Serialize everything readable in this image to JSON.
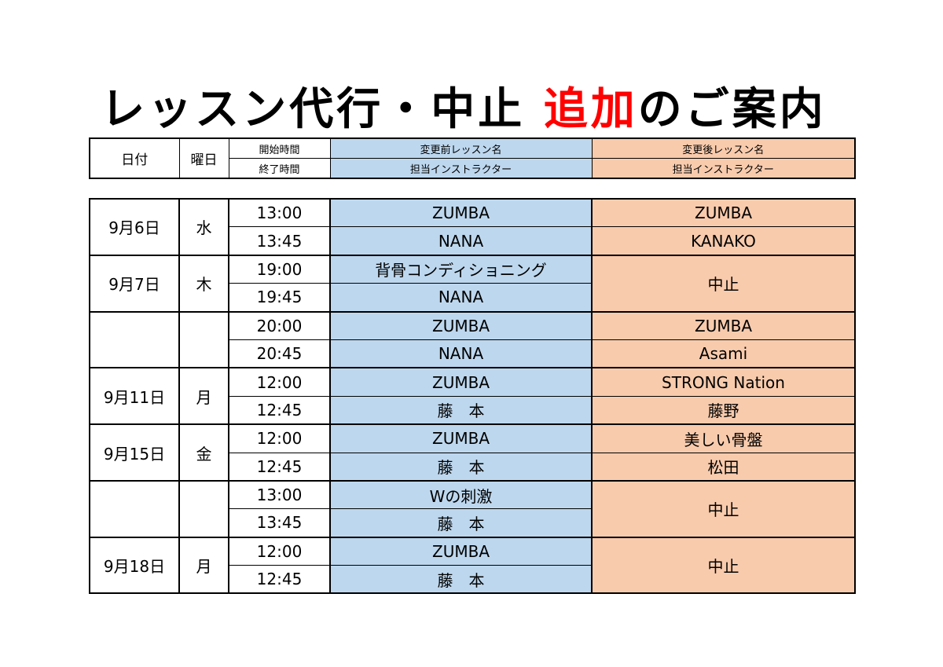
{
  "title": {
    "part1": "レッスン代行・中止 ",
    "highlight": "追加",
    "part2": "のご案内",
    "highlight_color": "#ff0000"
  },
  "header": {
    "date": "日付",
    "day": "曜日",
    "start_time": "開始時間",
    "end_time": "終了時間",
    "before_lesson": "変更前レッスン名",
    "before_instructor": "担当インストラクター",
    "after_lesson": "変更後レッスン名",
    "after_instructor": "担当インストラクター"
  },
  "colors": {
    "before_bg": "#bdd7ee",
    "after_bg": "#f8cbad"
  },
  "groups": [
    {
      "date": "9月6日",
      "day": "水",
      "times": [
        "13:00",
        "13:45"
      ],
      "before": [
        "ZUMBA",
        "NANA"
      ],
      "after": [
        "ZUMBA",
        "KANAKO"
      ]
    },
    {
      "date": "9月7日",
      "day": "木",
      "times": [
        "19:00",
        "19:45"
      ],
      "before": [
        "背骨コンディショニング",
        "NANA"
      ],
      "after_merged": "中止"
    },
    {
      "date": "",
      "day": "",
      "times": [
        "20:00",
        "20:45"
      ],
      "before": [
        "ZUMBA",
        "NANA"
      ],
      "after": [
        "ZUMBA",
        "Asami"
      ]
    },
    {
      "date": "9月11日",
      "day": "月",
      "times": [
        "12:00",
        "12:45"
      ],
      "before": [
        "ZUMBA",
        "藤　本"
      ],
      "after": [
        "STRONG Nation",
        "藤野"
      ]
    },
    {
      "date": "9月15日",
      "day": "金",
      "times": [
        "12:00",
        "12:45"
      ],
      "before": [
        "ZUMBA",
        "藤　本"
      ],
      "after": [
        "美しい骨盤",
        "松田"
      ]
    },
    {
      "date": "",
      "day": "",
      "times": [
        "13:00",
        "13:45"
      ],
      "before": [
        "Wの刺激",
        "藤　本"
      ],
      "after_merged": "中止"
    },
    {
      "date": "9月18日",
      "day": "月",
      "times": [
        "12:00",
        "12:45"
      ],
      "before": [
        "ZUMBA",
        "藤　本"
      ],
      "after_merged": "中止"
    }
  ]
}
